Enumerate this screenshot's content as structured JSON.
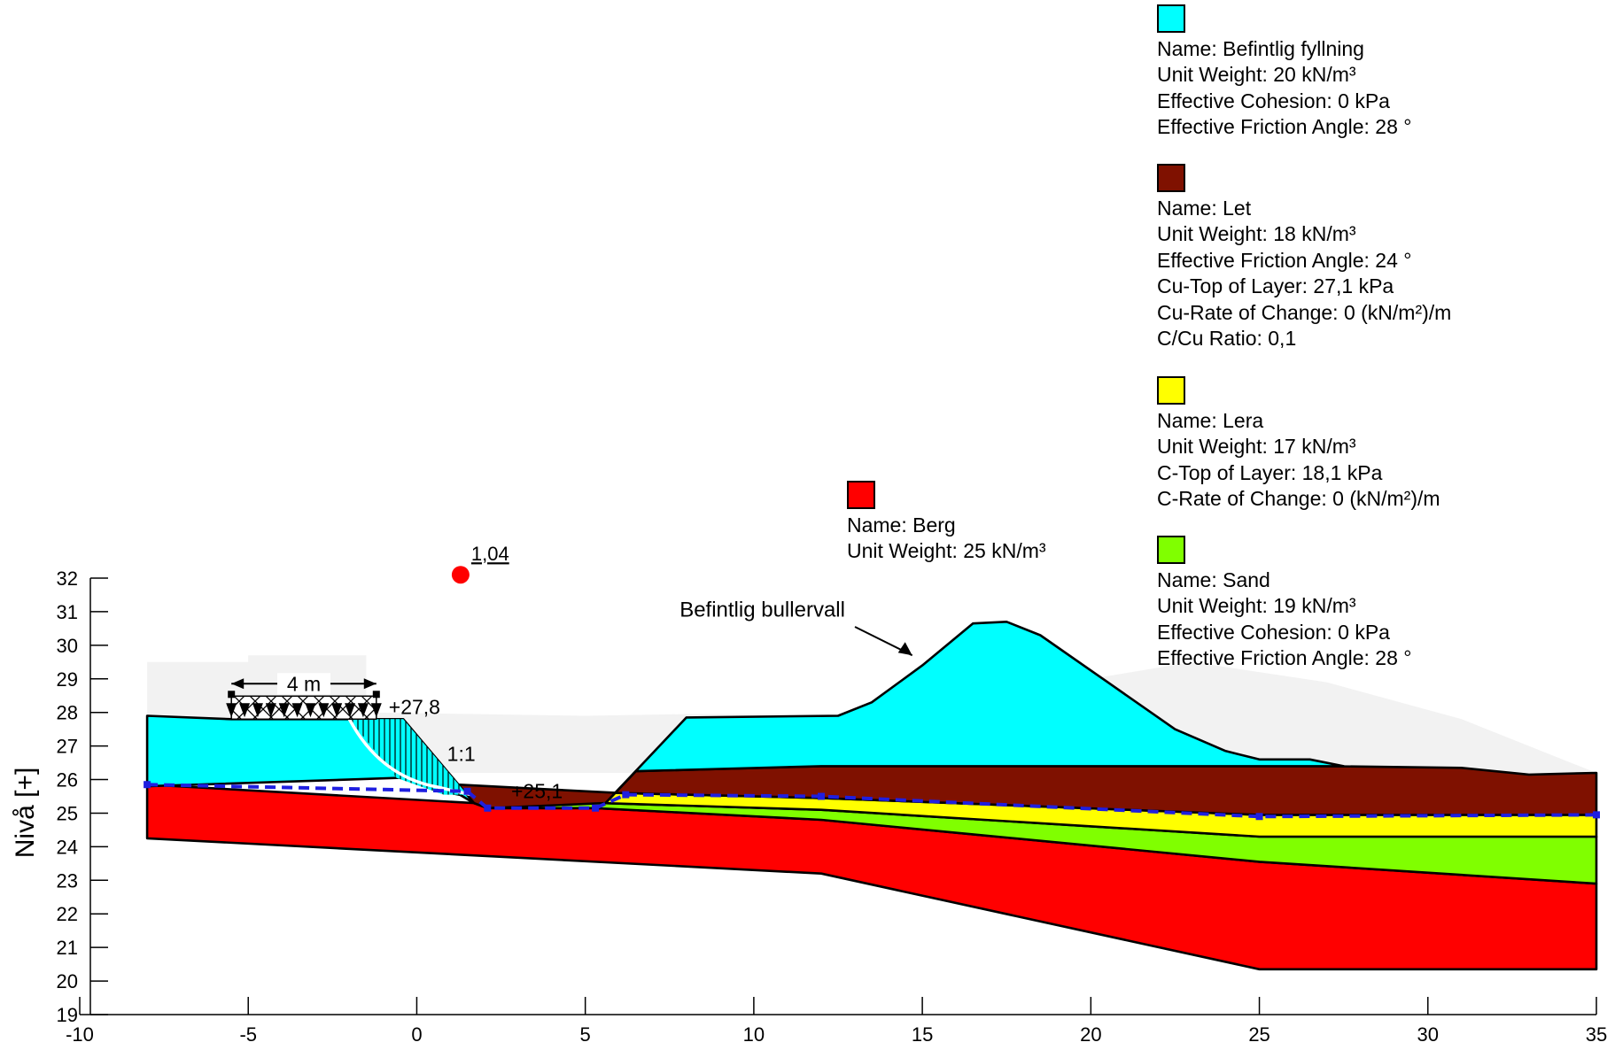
{
  "axes": {
    "ylabel": "Nivå [+]",
    "xlim": [
      -10,
      35
    ],
    "ylim": [
      19,
      32
    ],
    "x_ticks": [
      "-10",
      "-5",
      "0",
      "5",
      "10",
      "15",
      "20",
      "25",
      "30",
      "35"
    ],
    "y_ticks": [
      "19",
      "20",
      "21",
      "22",
      "23",
      "24",
      "25",
      "26",
      "27",
      "28",
      "29",
      "30",
      "31",
      "32"
    ]
  },
  "materials": [
    {
      "color": "#00FFFF",
      "lines": [
        "Name: Befintlig fyllning",
        "Unit Weight: 20 kN/m³",
        "Effective Cohesion: 0 kPa",
        "Effective Friction Angle: 28 °"
      ]
    },
    {
      "color": "#7F1100",
      "lines": [
        "Name: Let",
        "Unit Weight: 18 kN/m³",
        "Effective Friction Angle: 24 °",
        "Cu-Top of Layer: 27,1 kPa",
        "Cu-Rate of Change: 0 (kN/m²)/m",
        "C/Cu Ratio: 0,1"
      ]
    },
    {
      "color": "#FFFF00",
      "lines": [
        "Name: Lera",
        "Unit Weight: 17 kN/m³",
        "C-Top of Layer: 18,1 kPa",
        "C-Rate of Change: 0 (kN/m²)/m"
      ]
    },
    {
      "color": "#80FF00",
      "lines": [
        "Name: Sand",
        "Unit Weight: 19 kN/m³",
        "Effective Cohesion: 0 kPa",
        "Effective Friction Angle: 28 °"
      ]
    }
  ],
  "berg": {
    "color": "#FF0000",
    "lines": [
      "Name: Berg",
      "Unit Weight: 25 kN/m³"
    ]
  },
  "annotations": {
    "safety_factor": "1,04",
    "load_width": "4 m",
    "crest_level": "+27,8",
    "slope": "1:1",
    "ditch_level": "+25,1",
    "bullervall": "Befintlig bullervall"
  },
  "chart_data": {
    "type": "diagram",
    "ylabel": "Nivå [+]",
    "xlim": [
      -10,
      35
    ],
    "ylim": [
      19,
      32
    ],
    "layers": {
      "berg": [
        [
          -8,
          24.25
        ],
        [
          12,
          23.2
        ],
        [
          25,
          20.35
        ],
        [
          35,
          20.35
        ],
        [
          35,
          22.9
        ],
        [
          25,
          23.55
        ],
        [
          12,
          24.8
        ],
        [
          5.3,
          25.15
        ],
        [
          2.1,
          25.15
        ],
        [
          1.7,
          25.3
        ],
        [
          -8,
          25.85
        ]
      ],
      "sand": [
        [
          1.7,
          25.3
        ],
        [
          2.1,
          25.15
        ],
        [
          5.3,
          25.15
        ],
        [
          12,
          24.8
        ],
        [
          25,
          23.55
        ],
        [
          35,
          22.9
        ],
        [
          35,
          24.3
        ],
        [
          25,
          24.3
        ],
        [
          12,
          25.1
        ],
        [
          5.5,
          25.3
        ],
        [
          1.5,
          25.5
        ]
      ],
      "lera": [
        [
          1.5,
          25.5
        ],
        [
          5.5,
          25.3
        ],
        [
          12,
          25.1
        ],
        [
          25,
          24.3
        ],
        [
          35,
          24.3
        ],
        [
          35,
          24.95
        ],
        [
          25,
          24.95
        ],
        [
          12,
          25.45
        ],
        [
          6,
          25.6
        ],
        [
          1,
          25.6
        ]
      ],
      "let": [
        [
          -0.5,
          26.05
        ],
        [
          1.2,
          25.85
        ],
        [
          6,
          25.6
        ],
        [
          12,
          25.45
        ],
        [
          25,
          24.95
        ],
        [
          35,
          24.95
        ],
        [
          35,
          26.2
        ],
        [
          33,
          26.15
        ],
        [
          31,
          26.35
        ],
        [
          27,
          26.4
        ],
        [
          12,
          26.4
        ],
        [
          6.5,
          26.25
        ],
        [
          5.6,
          25.3
        ],
        [
          2.1,
          25.15
        ],
        [
          1.7,
          25.3
        ],
        [
          1.2,
          25.6
        ],
        [
          0.8,
          26.05
        ]
      ],
      "fyllning": [
        [
          -8,
          27.9
        ],
        [
          -5.5,
          27.8
        ],
        [
          -0.4,
          27.8
        ],
        [
          1.7,
          25.3
        ],
        [
          1.2,
          25.6
        ],
        [
          0.8,
          25.95
        ],
        [
          -0.5,
          26.05
        ],
        [
          -8,
          25.8
        ]
      ],
      "bullervall": [
        [
          5.6,
          25.3
        ],
        [
          8,
          27.85
        ],
        [
          12.5,
          27.9
        ],
        [
          13.5,
          28.3
        ],
        [
          15,
          29.4
        ],
        [
          16.5,
          30.65
        ],
        [
          17.5,
          30.7
        ],
        [
          18.5,
          30.3
        ],
        [
          20.5,
          28.9
        ],
        [
          22.5,
          27.5
        ],
        [
          24,
          26.85
        ],
        [
          25,
          26.6
        ],
        [
          26.5,
          26.6
        ],
        [
          27.5,
          26.4
        ],
        [
          12,
          26.4
        ],
        [
          6.5,
          26.25
        ]
      ]
    },
    "slip_circle_center": [
      1.3,
      32.1
    ],
    "factor_of_safety": 1.04,
    "load": {
      "x_start": -5.5,
      "x_end": -1.2,
      "level": 27.8
    },
    "water_table": [
      [
        -8,
        25.85
      ],
      [
        1.5,
        25.65
      ],
      [
        2.1,
        25.15
      ],
      [
        5.3,
        25.15
      ],
      [
        6.2,
        25.55
      ],
      [
        12,
        25.5
      ],
      [
        25,
        24.9
      ],
      [
        35,
        24.95
      ]
    ]
  }
}
